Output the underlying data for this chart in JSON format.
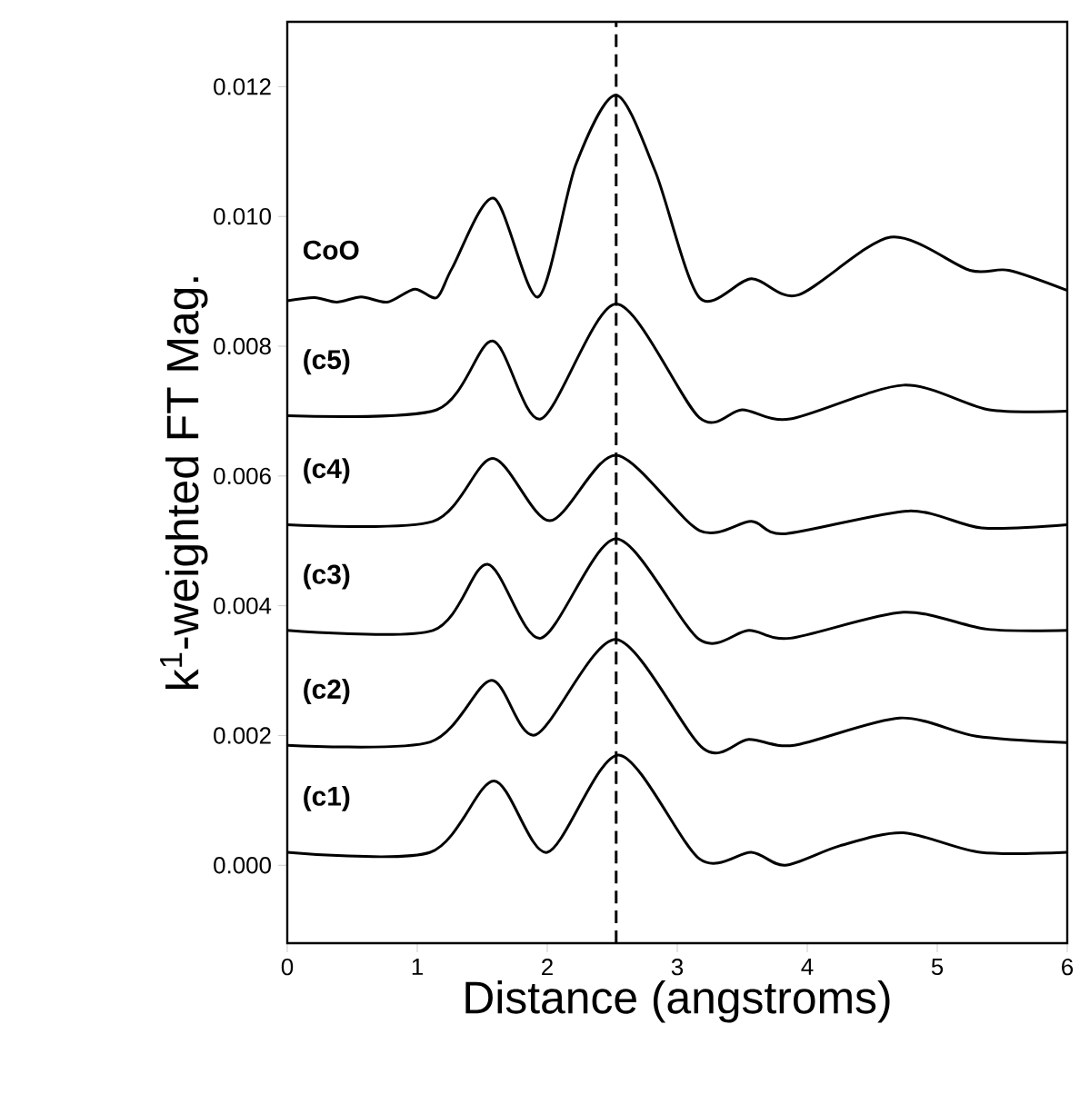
{
  "chart_data": {
    "type": "line",
    "xlabel": "Distance (angstroms)",
    "ylabel": "k$^{1}$-weighted FT Mag.",
    "xlim": [
      0,
      6
    ],
    "xticks": [
      0,
      1,
      2,
      3,
      4,
      5,
      6
    ],
    "ylim": [
      -0.0012,
      0.013
    ],
    "yticks": [
      {
        "value": 0,
        "label": "0.000"
      },
      {
        "value": 0.002,
        "label": "0.002"
      },
      {
        "value": 0.004,
        "label": "0.004"
      },
      {
        "value": 0.006,
        "label": "0.006"
      },
      {
        "value": 0.008,
        "label": "0.008"
      },
      {
        "value": 0.01,
        "label": "0.010"
      },
      {
        "value": 0.012,
        "label": "0.012"
      }
    ],
    "grid": false,
    "legend": false,
    "marker": "none",
    "line_style": "solid",
    "ref_lines": [
      {
        "axis": "x",
        "value": 2.53,
        "line_style": "dashed",
        "color": "#000000"
      }
    ],
    "series": [
      {
        "name": "CoO",
        "color": "#000000",
        "x": [
          0.0,
          0.21,
          0.38,
          0.57,
          0.77,
          0.98,
          1.15,
          1.27,
          1.59,
          1.93,
          2.22,
          2.53,
          2.83,
          3.17,
          3.57,
          3.93,
          4.64,
          5.25,
          5.55,
          6.0
        ],
        "values": [
          0.0087,
          0.00875,
          0.00868,
          0.00876,
          0.00868,
          0.00888,
          0.00875,
          0.00921,
          0.01028,
          0.00876,
          0.0108,
          0.01187,
          0.0107,
          0.00875,
          0.00904,
          0.00879,
          0.00968,
          0.00917,
          0.00917,
          0.00886
        ]
      },
      {
        "name": "(c5)",
        "color": "#000000",
        "x": [
          0.0,
          1.15,
          1.58,
          1.95,
          2.53,
          3.17,
          3.5,
          3.87,
          4.74,
          5.4,
          6.0
        ],
        "values": [
          0.00693,
          0.00702,
          0.00808,
          0.00688,
          0.00865,
          0.0069,
          0.00702,
          0.00688,
          0.0074,
          0.00702,
          0.007
        ]
      },
      {
        "name": "(c4)",
        "color": "#000000",
        "x": [
          0.0,
          1.12,
          1.58,
          2.02,
          2.53,
          3.17,
          3.57,
          3.83,
          4.78,
          5.34,
          6.0
        ],
        "values": [
          0.00525,
          0.0053,
          0.00627,
          0.00531,
          0.00632,
          0.00516,
          0.0053,
          0.00511,
          0.00546,
          0.0052,
          0.00525
        ]
      },
      {
        "name": "(c3)",
        "color": "#000000",
        "x": [
          0.0,
          1.12,
          1.54,
          1.95,
          2.53,
          3.17,
          3.55,
          3.87,
          4.74,
          5.38,
          6.0
        ],
        "values": [
          0.00362,
          0.00362,
          0.00464,
          0.0035,
          0.00503,
          0.00348,
          0.00362,
          0.0035,
          0.0039,
          0.00364,
          0.00362
        ]
      },
      {
        "name": "(c2)",
        "color": "#000000",
        "x": [
          0.0,
          1.1,
          1.57,
          1.91,
          2.53,
          3.2,
          3.55,
          3.9,
          4.71,
          5.3,
          6.0
        ],
        "values": [
          0.00185,
          0.0019,
          0.00285,
          0.00201,
          0.00348,
          0.0018,
          0.00194,
          0.00185,
          0.00227,
          0.00199,
          0.00189
        ]
      },
      {
        "name": "(c1)",
        "color": "#000000",
        "x": [
          0.0,
          1.1,
          1.59,
          2.0,
          2.55,
          3.17,
          3.57,
          3.83,
          4.25,
          4.74,
          5.33,
          6.0
        ],
        "values": [
          0.0002,
          0.0002,
          0.0013,
          0.0002,
          0.0017,
          0.0001,
          0.0002,
          0.0,
          0.0003,
          0.0005,
          0.0002,
          0.0002
        ]
      }
    ]
  }
}
